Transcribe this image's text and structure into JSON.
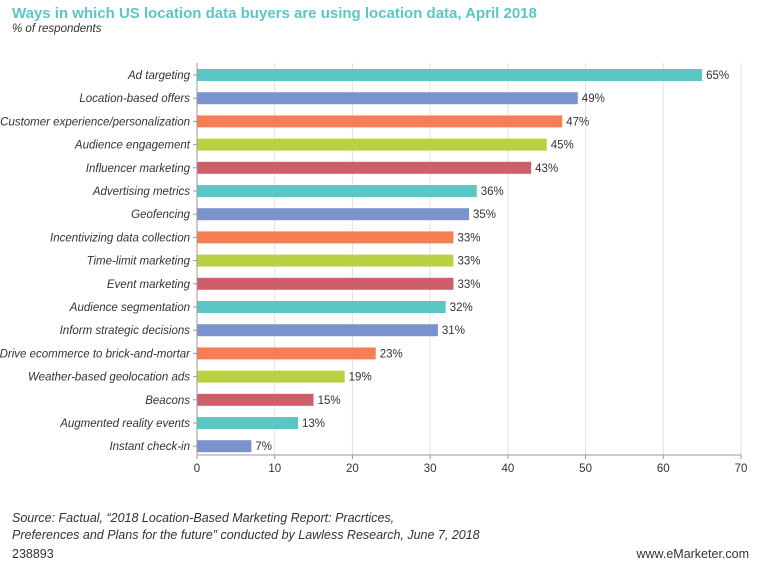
{
  "title": "Ways in which US location data buyers are using location data, April 2018",
  "subtitle": "% of respondents",
  "chart_data": {
    "type": "bar",
    "orientation": "horizontal",
    "categories": [
      "Ad targeting",
      "Location-based offers",
      "Customer experience/personalization",
      "Audience engagement",
      "Influencer marketing",
      "Advertising metrics",
      "Geofencing",
      "Incentivizing data collection",
      "Time-limit marketing",
      "Event marketing",
      "Audience segmentation",
      "Inform strategic decisions",
      "Drive ecommerce to brick-and-mortar",
      "Weather-based geolocation ads",
      "Beacons",
      "Augmented reality events",
      "Instant check-in"
    ],
    "values": [
      65,
      49,
      47,
      45,
      43,
      36,
      35,
      33,
      33,
      33,
      32,
      31,
      23,
      19,
      15,
      13,
      7
    ],
    "value_labels": [
      "65%",
      "49%",
      "47%",
      "45%",
      "43%",
      "36%",
      "35%",
      "33%",
      "33%",
      "33%",
      "32%",
      "31%",
      "23%",
      "19%",
      "15%",
      "13%",
      "7%"
    ],
    "colors": [
      "#5bc6c4",
      "#7b93cc",
      "#f57f53",
      "#bbd144",
      "#cf5e6b"
    ],
    "xlim": [
      0,
      70
    ],
    "xticks": [
      0,
      10,
      20,
      30,
      40,
      50,
      60,
      70
    ],
    "xtick_labels": [
      "0",
      "10",
      "20",
      "30",
      "40",
      "50",
      "60",
      "70"
    ],
    "grid": "vertical",
    "title": "Ways in which US location data buyers are using location data, April 2018",
    "xlabel": "",
    "ylabel": ""
  },
  "source": {
    "line1": "Source: Factual, “2018 Location-Based Marketing Report: Pracrtices,",
    "line2": "Preferences and Plans for the future” conducted by Lawless Research, June 7, 2018"
  },
  "chart_id": "238893",
  "brand": "www.eMarketer.com"
}
